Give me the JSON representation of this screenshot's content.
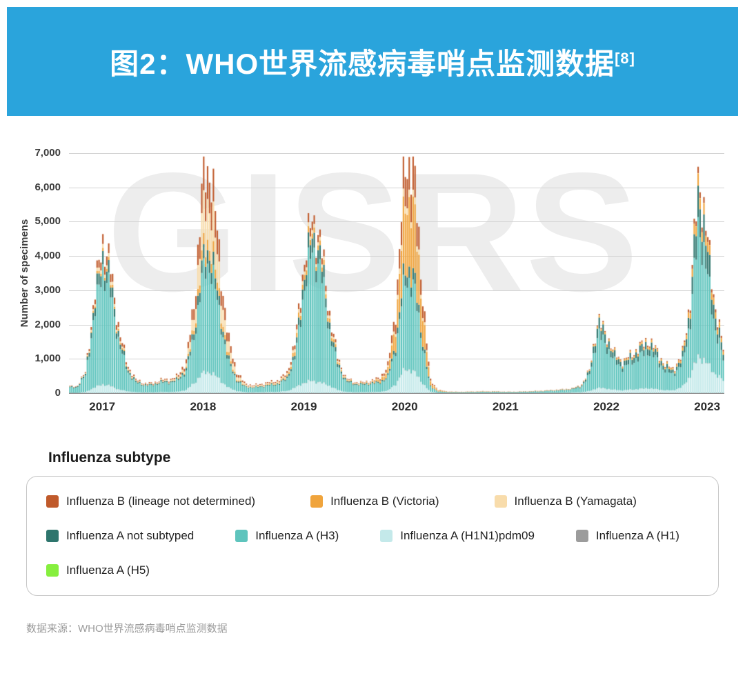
{
  "header": {
    "title": "图2：WHO世界流感病毒哨点监测数据",
    "ref": "[8]",
    "bg_color": "#2aa4dc"
  },
  "legend": {
    "title": "Influenza subtype",
    "rows": [
      [
        0,
        1,
        2
      ],
      [
        3,
        4,
        5,
        6
      ],
      [
        7
      ]
    ],
    "items": [
      {
        "key": "influenza-b-lineage-not-determined",
        "label": "Influenza B (lineage not determined)",
        "color": "#c05a2b"
      },
      {
        "key": "influenza-b-victoria",
        "label": "Influenza B (Victoria)",
        "color": "#f0a43c"
      },
      {
        "key": "influenza-b-yamagata",
        "label": "Influenza B (Yamagata)",
        "color": "#f8dcab"
      },
      {
        "key": "influenza-a-not-subtyped",
        "label": "Influenza A not subtyped",
        "color": "#2e756d"
      },
      {
        "key": "influenza-a-h3",
        "label": "Influenza A (H3)",
        "color": "#5ec4bd"
      },
      {
        "key": "influenza-a-h1n1pdm09",
        "label": "Influenza A (H1N1)pdm09",
        "color": "#c4e9ea"
      },
      {
        "key": "influenza-a-h1",
        "label": "Influenza A (H1)",
        "color": "#9c9c9c"
      },
      {
        "key": "influenza-a-h5",
        "label": "Influenza A (H5)",
        "color": "#86ef3e"
      }
    ]
  },
  "footer": {
    "source": "数据来源：WHO世界流感病毒哨点监测数据"
  },
  "chart_data": {
    "type": "bar",
    "stacked": true,
    "title": "WHO GISRS influenza sentinel surveillance — weekly specimens by subtype",
    "watermark": "GISRS",
    "ylabel": "Number of specimens",
    "ylim": [
      0,
      7000
    ],
    "yticks": [
      0,
      1000,
      2000,
      3000,
      4000,
      5000,
      6000,
      7000
    ],
    "ytick_labels": [
      "0",
      "1,000",
      "2,000",
      "3,000",
      "4,000",
      "5,000",
      "6,000",
      "7,000"
    ],
    "x_axis": {
      "start_year": 2016.67,
      "end_year": 2023.17,
      "tick_years": [
        2017,
        2018,
        2019,
        2020,
        2021,
        2022,
        2023
      ]
    },
    "x_monthly_start": "2016-10",
    "month0_decimal_year": 2016.75,
    "grid": true,
    "legend_position": "bottom",
    "series": [
      {
        "name": "Influenza A (H1N1)pdm09",
        "color": "#c4e9ea",
        "values": [
          10,
          30,
          150,
          250,
          200,
          100,
          50,
          25,
          20,
          20,
          30,
          30,
          40,
          90,
          300,
          600,
          600,
          380,
          160,
          60,
          25,
          20,
          25,
          30,
          35,
          60,
          160,
          300,
          350,
          300,
          220,
          90,
          35,
          25,
          25,
          30,
          35,
          70,
          280,
          700,
          650,
          330,
          40,
          8,
          5,
          4,
          4,
          5,
          5,
          6,
          6,
          5,
          5,
          6,
          7,
          8,
          10,
          12,
          15,
          20,
          25,
          60,
          150,
          130,
          90,
          80,
          100,
          120,
          140,
          110,
          80,
          80,
          170,
          500,
          1100,
          850,
          550,
          350
        ]
      },
      {
        "name": "Influenza A (H1)",
        "color": "#9c9c9c",
        "values": [
          0,
          0,
          5,
          10,
          8,
          5,
          2,
          1,
          1,
          1,
          1,
          1,
          1,
          2,
          5,
          10,
          10,
          6,
          3,
          1,
          1,
          1,
          1,
          1,
          1,
          2,
          4,
          8,
          10,
          8,
          4,
          2,
          1,
          1,
          1,
          1,
          1,
          2,
          5,
          10,
          10,
          5,
          1,
          0,
          0,
          0,
          0,
          0,
          0,
          0,
          0,
          0,
          0,
          0,
          0,
          0,
          0,
          0,
          0,
          0,
          1,
          2,
          5,
          4,
          3,
          2,
          3,
          3,
          4,
          3,
          2,
          2,
          3,
          8,
          15,
          12,
          8,
          5
        ]
      },
      {
        "name": "Influenza A (H3)",
        "color": "#5ec4bd",
        "values": [
          150,
          480,
          2000,
          3400,
          2700,
          1350,
          580,
          280,
          200,
          200,
          270,
          270,
          320,
          550,
          1400,
          3000,
          3100,
          1800,
          750,
          300,
          150,
          130,
          160,
          190,
          220,
          350,
          900,
          2700,
          3800,
          3300,
          1650,
          720,
          300,
          220,
          210,
          240,
          250,
          380,
          1100,
          2600,
          2600,
          1300,
          150,
          40,
          25,
          20,
          20,
          25,
          30,
          30,
          30,
          25,
          25,
          30,
          35,
          40,
          50,
          60,
          70,
          90,
          150,
          470,
          1600,
          1250,
          820,
          650,
          800,
          950,
          1100,
          870,
          560,
          480,
          650,
          1600,
          3900,
          2600,
          1300,
          550
        ]
      },
      {
        "name": "Influenza A not subtyped",
        "color": "#2e756d",
        "values": [
          20,
          50,
          220,
          380,
          300,
          150,
          70,
          35,
          25,
          25,
          35,
          35,
          40,
          70,
          180,
          380,
          380,
          220,
          90,
          40,
          20,
          18,
          20,
          25,
          28,
          45,
          110,
          330,
          420,
          380,
          200,
          90,
          40,
          28,
          26,
          30,
          30,
          45,
          130,
          320,
          330,
          160,
          20,
          6,
          4,
          3,
          3,
          4,
          5,
          5,
          5,
          4,
          4,
          5,
          6,
          7,
          9,
          10,
          12,
          15,
          30,
          90,
          300,
          240,
          160,
          120,
          150,
          180,
          210,
          160,
          110,
          90,
          130,
          350,
          900,
          650,
          350,
          160
        ]
      },
      {
        "name": "Influenza A (H5)",
        "color": "#86ef3e",
        "values": [
          0,
          0,
          0,
          0,
          0,
          0,
          0,
          0,
          0,
          0,
          0,
          0,
          0,
          0,
          0,
          0,
          0,
          0,
          0,
          0,
          0,
          0,
          0,
          0,
          0,
          0,
          0,
          0,
          0,
          0,
          0,
          0,
          0,
          0,
          0,
          0,
          0,
          0,
          0,
          0,
          0,
          0,
          0,
          0,
          0,
          0,
          0,
          0,
          0,
          0,
          0,
          0,
          0,
          0,
          0,
          0,
          0,
          0,
          0,
          0,
          0,
          0,
          0,
          0,
          0,
          0,
          0,
          0,
          0,
          0,
          0,
          0,
          0,
          0,
          0,
          0,
          0,
          0
        ]
      },
      {
        "name": "Influenza B (Victoria)",
        "color": "#f0a43c",
        "values": [
          5,
          10,
          50,
          90,
          80,
          50,
          25,
          12,
          10,
          10,
          12,
          15,
          20,
          40,
          120,
          300,
          300,
          200,
          90,
          40,
          15,
          12,
          15,
          18,
          25,
          45,
          120,
          150,
          150,
          130,
          120,
          55,
          25,
          18,
          18,
          25,
          60,
          160,
          600,
          1900,
          2050,
          1000,
          120,
          25,
          12,
          8,
          8,
          8,
          8,
          8,
          8,
          6,
          6,
          6,
          7,
          8,
          8,
          10,
          10,
          12,
          15,
          25,
          60,
          55,
          45,
          40,
          50,
          60,
          70,
          60,
          45,
          45,
          70,
          180,
          350,
          280,
          180,
          90
        ]
      },
      {
        "name": "Influenza B (Yamagata)",
        "color": "#f8dcab",
        "values": [
          5,
          15,
          60,
          110,
          90,
          55,
          30,
          15,
          12,
          12,
          18,
          20,
          35,
          90,
          350,
          1150,
          1150,
          650,
          280,
          100,
          35,
          25,
          25,
          30,
          30,
          45,
          90,
          100,
          100,
          90,
          80,
          40,
          18,
          12,
          12,
          15,
          20,
          40,
          100,
          220,
          200,
          110,
          15,
          4,
          2,
          2,
          2,
          2,
          2,
          2,
          2,
          1,
          1,
          1,
          1,
          1,
          1,
          1,
          1,
          1,
          1,
          2,
          3,
          3,
          2,
          2,
          2,
          2,
          3,
          2,
          2,
          2,
          2,
          3,
          5,
          4,
          3,
          2
        ]
      },
      {
        "name": "Influenza B (lineage not determined)",
        "color": "#c05a2b",
        "values": [
          10,
          25,
          120,
          280,
          240,
          130,
          60,
          30,
          20,
          20,
          25,
          30,
          45,
          110,
          350,
          900,
          950,
          550,
          230,
          90,
          30,
          22,
          25,
          30,
          35,
          55,
          120,
          200,
          250,
          200,
          140,
          60,
          25,
          18,
          18,
          22,
          40,
          100,
          350,
          900,
          950,
          450,
          55,
          10,
          5,
          4,
          4,
          4,
          4,
          4,
          4,
          3,
          3,
          3,
          4,
          4,
          4,
          5,
          5,
          6,
          8,
          15,
          35,
          30,
          25,
          22,
          28,
          32,
          38,
          30,
          22,
          22,
          35,
          90,
          180,
          140,
          90,
          45
        ]
      }
    ]
  }
}
